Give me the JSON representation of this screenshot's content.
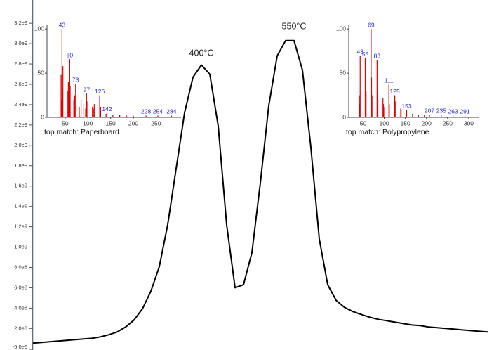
{
  "chart_data": [
    {
      "type": "line",
      "color": "#000000",
      "values": [
        55000000.0,
        62000000.0,
        69000000.0,
        76000000.0,
        83000000.0,
        90000000.0,
        97000000.0,
        103000000.0,
        117000000.0,
        138000000.0,
        166000000.0,
        214000000.0,
        283000000.0,
        393000000.0,
        566000000.0,
        807000000.0,
        1220000000.0,
        1770000000.0,
        2320000000.0,
        2670000000.0,
        2790000000.0,
        2700000000.0,
        2190000000.0,
        1220000000.0,
        600000000.0,
        630000000.0,
        945000000.0,
        1630000000.0,
        2390000000.0,
        2880000000.0,
        3030000000.0,
        3030000000.0,
        2740000000.0,
        1980000000.0,
        1080000000.0,
        630000000.0,
        476000000.0,
        407000000.0,
        366000000.0,
        338000000.0,
        310000000.0,
        290000000.0,
        276000000.0,
        262000000.0,
        248000000.0,
        234000000.0,
        228000000.0,
        214000000.0,
        207000000.0,
        200000000.0,
        193000000.0,
        186000000.0,
        179000000.0,
        172000000.0,
        166000000.0
      ],
      "ylim": [
        -5000000.0,
        3360000000.0
      ],
      "yticks": [
        {
          "value": -5000000.0,
          "label": "-5.0e6"
        },
        {
          "value": 200000000.0,
          "label": "2.0e8"
        },
        {
          "value": 400000000.0,
          "label": "4.0e8"
        },
        {
          "value": 600000000.0,
          "label": "6.0e8"
        },
        {
          "value": 800000000.0,
          "label": "8.0e8"
        },
        {
          "value": 1000000000.0,
          "label": "1.0e9"
        },
        {
          "value": 1200000000.0,
          "label": "1.2e9"
        },
        {
          "value": 1400000000.0,
          "label": "1.4e9"
        },
        {
          "value": 1600000000.0,
          "label": "1.6e9"
        },
        {
          "value": 1800000000.0,
          "label": "1.8e9"
        },
        {
          "value": 2000000000.0,
          "label": "2.0e9"
        },
        {
          "value": 2200000000.0,
          "label": "2.2e9"
        },
        {
          "value": 2400000000.0,
          "label": "2.4e9"
        },
        {
          "value": 2600000000.0,
          "label": "2.6e9"
        },
        {
          "value": 2800000000.0,
          "label": "2.8e9"
        },
        {
          "value": 3000000000.0,
          "label": "3.0e9"
        },
        {
          "value": 3200000000.0,
          "label": "3.2e9"
        }
      ],
      "annotations": [
        "400°C",
        "550°C"
      ]
    },
    {
      "type": "bar",
      "color": "#e00000",
      "label_color": "#2b2bd6",
      "xlabel": "top match: Paperboard",
      "xlim": [
        10,
        305
      ],
      "ylim": [
        0,
        105
      ],
      "xticks": [
        50,
        100,
        150,
        200,
        250
      ],
      "yticks": [
        0,
        50,
        100
      ],
      "labeled_peaks": {
        "x": [
          43,
          60,
          73,
          97,
          126,
          142,
          228,
          254,
          284
        ],
        "values": [
          100,
          66,
          38,
          27,
          25,
          5,
          2,
          2,
          2
        ]
      },
      "other_peaks": {
        "x": [
          41,
          42,
          44,
          45,
          55,
          57,
          58,
          61,
          69,
          71,
          74,
          81,
          85,
          91,
          95,
          98,
          110,
          112,
          114,
          128,
          140,
          155,
          170,
          185,
          200
        ],
        "values": [
          48,
          20,
          30,
          58,
          30,
          40,
          20,
          35,
          20,
          25,
          15,
          12,
          20,
          15,
          10,
          18,
          12,
          10,
          15,
          12,
          4,
          3,
          3,
          2,
          2
        ]
      }
    },
    {
      "type": "bar",
      "color": "#e00000",
      "label_color": "#2b2bd6",
      "xlabel": "top match: Polypropylene",
      "xlim": [
        16,
        325
      ],
      "ylim": [
        0,
        105
      ],
      "xticks": [
        50,
        100,
        150,
        200,
        250,
        300
      ],
      "yticks": [
        0,
        50,
        100
      ],
      "labeled_peaks": {
        "x": [
          43,
          55,
          69,
          83,
          111,
          125,
          153,
          207,
          235,
          263,
          291
        ],
        "values": [
          70,
          67,
          100,
          65,
          37,
          25,
          8,
          3,
          3,
          2,
          2
        ]
      },
      "other_peaks": {
        "x": [
          41,
          42,
          56,
          57,
          70,
          71,
          84,
          85,
          97,
          98,
          99,
          112,
          126,
          139,
          140,
          167,
          181,
          195
        ],
        "values": [
          25,
          15,
          40,
          30,
          45,
          25,
          30,
          20,
          22,
          15,
          12,
          15,
          18,
          10,
          8,
          4,
          3,
          3
        ]
      }
    }
  ]
}
